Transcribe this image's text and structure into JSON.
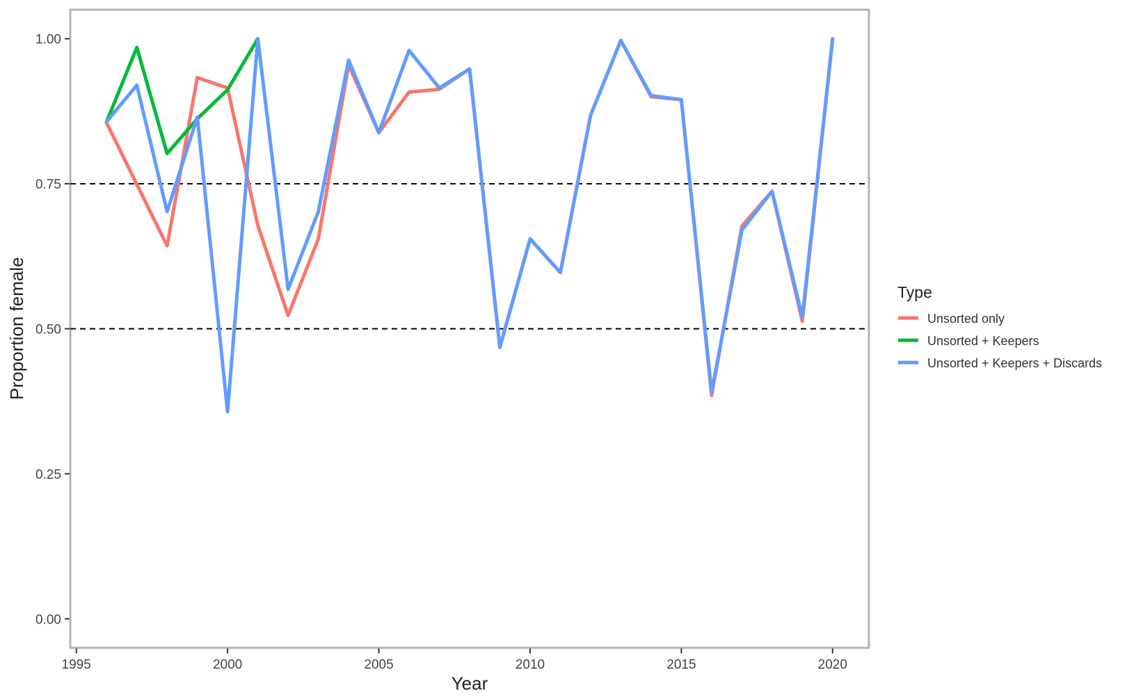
{
  "chart_data": {
    "type": "line",
    "title": "",
    "xlabel": "Year",
    "ylabel": "Proportion female",
    "xlim": [
      1994.8,
      2021.2
    ],
    "ylim": [
      -0.05,
      1.05
    ],
    "x_ticks": [
      1995,
      2000,
      2005,
      2010,
      2015,
      2020
    ],
    "x_tick_labels": [
      "1995",
      "2000",
      "2005",
      "2010",
      "2015",
      "2020"
    ],
    "y_ticks": [
      0,
      0.25,
      0.5,
      0.75,
      1.0
    ],
    "y_tick_labels": [
      "0.00",
      "0.25",
      "0.50",
      "0.75",
      "1.00"
    ],
    "reference_lines": [
      0.5,
      0.75
    ],
    "grid": false,
    "legend": {
      "title": "Type",
      "position": "right"
    },
    "series": [
      {
        "name": "Unsorted only",
        "color": "#F8766D",
        "x": [
          1996,
          1998,
          1999,
          2000,
          2001,
          2002,
          2003,
          2004,
          2005,
          2006,
          2007,
          2008,
          2009,
          2010,
          2011,
          2012,
          2013,
          2014,
          2015,
          2016,
          2017,
          2018,
          2019,
          2020
        ],
        "y": [
          0.855,
          0.643,
          0.933,
          0.915,
          0.678,
          0.523,
          0.655,
          0.955,
          0.838,
          0.908,
          0.913,
          0.948,
          0.468,
          0.655,
          0.597,
          0.868,
          0.997,
          0.9,
          0.895,
          0.385,
          0.677,
          0.737,
          0.513,
          1.0
        ]
      },
      {
        "name": "Unsorted + Keepers",
        "color": "#00BA38",
        "x": [
          1996,
          1997,
          1998,
          1999,
          2000,
          2001
        ],
        "y": [
          0.857,
          0.985,
          0.802,
          0.862,
          0.912,
          1.0
        ]
      },
      {
        "name": "Unsorted + Keepers + Discards",
        "color": "#619CFF",
        "x": [
          1996,
          1997,
          1998,
          1999,
          2000,
          2001,
          2002,
          2003,
          2004,
          2005,
          2006,
          2007,
          2008,
          2009,
          2010,
          2011,
          2012,
          2013,
          2014,
          2015,
          2016,
          2017,
          2018,
          2019,
          2020
        ],
        "y": [
          0.857,
          0.92,
          0.702,
          0.865,
          0.357,
          1.0,
          0.568,
          0.702,
          0.963,
          0.838,
          0.98,
          0.915,
          0.948,
          0.468,
          0.655,
          0.597,
          0.868,
          0.997,
          0.902,
          0.895,
          0.39,
          0.67,
          0.737,
          0.52,
          1.0
        ]
      }
    ]
  }
}
